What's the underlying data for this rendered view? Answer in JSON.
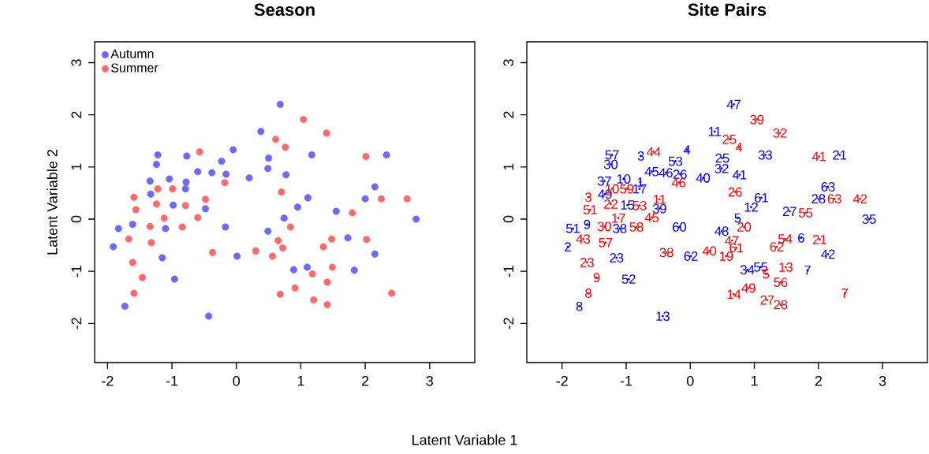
{
  "chart_data": [
    {
      "type": "scatter",
      "title": "Season",
      "xlabel": "Latent Variable 1",
      "ylabel": "Latent Variable 2",
      "xlim": [
        -2.2,
        3.7
      ],
      "ylim": [
        -2.75,
        3.4
      ],
      "xticks": [
        -2,
        -1,
        0,
        1,
        2,
        3
      ],
      "yticks": [
        -2,
        -1,
        0,
        1,
        2,
        3
      ],
      "marker": "circle",
      "legend": "top left",
      "series": [
        {
          "name": "Autumn",
          "color": "#6a6aff",
          "x": [
            -1.22,
            -1.24,
            -0.77,
            -0.05,
            -0.23,
            -0.6,
            -0.38,
            -0.16,
            -1.34,
            -1.04,
            -0.78,
            -0.79,
            -1.33,
            -0.98,
            -0.48,
            -1.83,
            -1.61,
            -1.1,
            -0.17,
            -1.91,
            -1.15,
            0.01,
            -0.96,
            -1.73,
            -0.43,
            0.68,
            0.38,
            1.17,
            0.5,
            0.49,
            0.77,
            0.2,
            1.11,
            0.95,
            0.74,
            0.49,
            1.55,
            0.89,
            1.1,
            1.73,
            2.33,
            2.15,
            2.0,
            2.79,
            2.15,
            1.83
          ],
          "values": [
            1.23,
            1.05,
            1.21,
            1.33,
            1.11,
            0.91,
            0.89,
            0.86,
            0.73,
            0.77,
            0.71,
            0.58,
            0.48,
            0.27,
            0.2,
            -0.18,
            -0.1,
            -0.18,
            -0.15,
            -0.53,
            -0.74,
            -0.71,
            -1.15,
            -1.67,
            -1.86,
            2.2,
            1.68,
            1.23,
            1.17,
            0.97,
            0.85,
            0.79,
            0.41,
            0.23,
            0.02,
            -0.23,
            0.15,
            -0.97,
            -0.92,
            -0.36,
            1.23,
            0.62,
            0.39,
            0.0,
            -0.67,
            -0.98
          ]
        },
        {
          "name": "Summer",
          "color": "#ff6a6a",
          "x": [
            -0.57,
            -0.18,
            -1.22,
            -0.99,
            -1.59,
            -0.48,
            -1.56,
            -1.24,
            -0.79,
            -0.6,
            -1.34,
            -0.84,
            -1.12,
            -1.32,
            -1.67,
            -0.37,
            -1.61,
            -1.46,
            -1.59,
            1.04,
            1.4,
            0.61,
            0.76,
            0.7,
            0.84,
            0.65,
            0.72,
            0.3,
            0.56,
            1.48,
            1.35,
            1.49,
            1.18,
            1.41,
            0.68,
            0.91,
            1.2,
            1.41,
            2.01,
            2.25,
            2.65,
            1.8,
            2.02,
            2.41
          ],
          "values": [
            1.29,
            0.7,
            0.58,
            0.58,
            0.42,
            0.38,
            0.18,
            0.29,
            0.26,
            0.03,
            -0.14,
            -0.15,
            0.02,
            -0.45,
            -0.38,
            -0.64,
            -0.83,
            -1.12,
            -1.42,
            1.91,
            1.65,
            1.53,
            1.38,
            0.52,
            -0.15,
            -0.41,
            -0.55,
            -0.61,
            -0.71,
            -0.38,
            -0.53,
            -0.92,
            -1.05,
            -1.21,
            -1.44,
            -1.32,
            -1.55,
            -1.64,
            1.2,
            0.39,
            0.39,
            0.12,
            -0.39,
            -1.42
          ]
        }
      ]
    },
    {
      "type": "scatter",
      "title": "Site Pairs",
      "xlim": [
        -2.55,
        3.7
      ],
      "ylim": [
        -2.75,
        3.4
      ],
      "xticks": [
        -2,
        -1,
        0,
        1,
        2,
        3
      ],
      "yticks": [
        -2,
        -1,
        0,
        1,
        2,
        3
      ],
      "marker": "circle",
      "series": [
        {
          "color": "#0000ff",
          "x": [
            -1.22,
            -1.24,
            -0.77,
            -0.05,
            -0.23,
            -0.6,
            -0.38,
            -0.16,
            -1.34,
            -1.04,
            -0.78,
            -0.79,
            -1.33,
            -0.98,
            -0.48,
            -1.83,
            -1.61,
            -1.1,
            -0.17,
            -1.91,
            -1.15,
            0.01,
            -0.96,
            -1.73,
            -0.43,
            0.68,
            0.38,
            1.17,
            0.5,
            0.49,
            0.77,
            0.2,
            1.11,
            0.95,
            0.74,
            0.49,
            1.55,
            0.89,
            1.1,
            1.73,
            2.33,
            2.15,
            2.0,
            2.79,
            2.15,
            1.83
          ],
          "values": [
            1.23,
            1.05,
            1.21,
            1.33,
            1.11,
            0.91,
            0.89,
            0.86,
            0.73,
            0.77,
            0.71,
            0.58,
            0.48,
            0.27,
            0.2,
            -0.18,
            -0.1,
            -0.18,
            -0.15,
            -0.53,
            -0.74,
            -0.71,
            -1.15,
            -1.67,
            -1.86,
            2.2,
            1.68,
            1.23,
            1.17,
            0.97,
            0.85,
            0.79,
            0.41,
            0.23,
            0.02,
            -0.23,
            0.15,
            -0.97,
            -0.92,
            -0.36,
            1.23,
            0.62,
            0.39,
            0.0,
            -0.67,
            -0.98
          ]
        },
        {
          "color": "#ff0000",
          "x": [
            -0.57,
            -0.18,
            -1.22,
            -0.99,
            -1.59,
            -0.48,
            -1.56,
            -1.24,
            -0.79,
            -0.6,
            -1.34,
            -0.84,
            -1.12,
            -1.32,
            -1.67,
            -0.37,
            -1.61,
            -1.46,
            -1.59,
            1.04,
            1.4,
            0.61,
            0.76,
            0.7,
            0.84,
            0.65,
            0.72,
            0.3,
            0.56,
            1.48,
            1.35,
            1.49,
            1.18,
            1.41,
            0.68,
            0.91,
            1.2,
            1.41,
            2.01,
            2.25,
            2.65,
            1.8,
            2.02,
            2.41
          ],
          "values": [
            1.29,
            0.7,
            0.58,
            0.58,
            0.42,
            0.38,
            0.18,
            0.29,
            0.26,
            0.03,
            -0.14,
            -0.15,
            0.02,
            -0.45,
            -0.38,
            -0.64,
            -0.83,
            -1.12,
            -1.42,
            1.91,
            1.65,
            1.53,
            1.38,
            0.52,
            -0.15,
            -0.41,
            -0.55,
            -0.61,
            -0.71,
            -0.38,
            -0.53,
            -0.92,
            -1.05,
            -1.21,
            -1.44,
            -1.32,
            -1.55,
            -1.64,
            1.2,
            0.39,
            0.39,
            0.12,
            -0.39,
            -1.42
          ]
        }
      ],
      "annotations": [
        {
          "text": "57",
          "x": -1.22,
          "y": 1.23
        },
        {
          "text": "30",
          "x": -1.24,
          "y": 1.05
        },
        {
          "text": "3",
          "x": -0.77,
          "y": 1.21
        },
        {
          "text": "4",
          "x": -0.05,
          "y": 1.33
        },
        {
          "text": "53",
          "x": -0.23,
          "y": 1.11
        },
        {
          "text": "45",
          "x": -0.6,
          "y": 0.91
        },
        {
          "text": "46",
          "x": -0.38,
          "y": 0.89
        },
        {
          "text": "26",
          "x": -0.16,
          "y": 0.86
        },
        {
          "text": "37",
          "x": -1.34,
          "y": 0.73
        },
        {
          "text": "10",
          "x": -1.04,
          "y": 0.77
        },
        {
          "text": "1",
          "x": -0.78,
          "y": 0.71
        },
        {
          "text": "17",
          "x": -0.79,
          "y": 0.58
        },
        {
          "text": "49",
          "x": -1.33,
          "y": 0.48
        },
        {
          "text": "15",
          "x": -0.98,
          "y": 0.27
        },
        {
          "text": "39",
          "x": -0.48,
          "y": 0.2
        },
        {
          "text": "51",
          "x": -1.83,
          "y": -0.18
        },
        {
          "text": "9",
          "x": -1.61,
          "y": -0.1
        },
        {
          "text": "38",
          "x": -1.1,
          "y": -0.18
        },
        {
          "text": "60",
          "x": -0.17,
          "y": -0.15
        },
        {
          "text": "2",
          "x": -1.91,
          "y": -0.53
        },
        {
          "text": "23",
          "x": -1.15,
          "y": -0.74
        },
        {
          "text": "62",
          "x": 0.01,
          "y": -0.71
        },
        {
          "text": "52",
          "x": -0.96,
          "y": -1.15
        },
        {
          "text": "8",
          "x": -1.73,
          "y": -1.67
        },
        {
          "text": "13",
          "x": -0.43,
          "y": -1.86
        },
        {
          "text": "47",
          "x": 0.68,
          "y": 2.2
        },
        {
          "text": "11",
          "x": 0.38,
          "y": 1.68
        },
        {
          "text": "33",
          "x": 1.17,
          "y": 1.23
        },
        {
          "text": "25",
          "x": 0.5,
          "y": 1.17
        },
        {
          "text": "32",
          "x": 0.49,
          "y": 0.97
        },
        {
          "text": "41",
          "x": 0.77,
          "y": 0.85
        },
        {
          "text": "40",
          "x": 0.2,
          "y": 0.79
        },
        {
          "text": "61",
          "x": 1.11,
          "y": 0.41
        },
        {
          "text": "12",
          "x": 0.95,
          "y": 0.23
        },
        {
          "text": "5",
          "x": 0.74,
          "y": 0.02
        },
        {
          "text": "48",
          "x": 0.49,
          "y": -0.23
        },
        {
          "text": "27",
          "x": 1.55,
          "y": 0.15
        },
        {
          "text": "34",
          "x": 0.89,
          "y": -0.97
        },
        {
          "text": "55",
          "x": 1.1,
          "y": -0.92
        },
        {
          "text": "6",
          "x": 1.73,
          "y": -0.36
        },
        {
          "text": "21",
          "x": 2.33,
          "y": 1.23
        },
        {
          "text": "63",
          "x": 2.15,
          "y": 0.62
        },
        {
          "text": "28",
          "x": 2.0,
          "y": 0.39
        },
        {
          "text": "35",
          "x": 2.79,
          "y": 0.0
        },
        {
          "text": "42",
          "x": 2.15,
          "y": -0.67
        },
        {
          "text": "7",
          "x": 1.83,
          "y": -0.98
        },
        {
          "text": "44",
          "x": -0.57,
          "y": 1.29
        },
        {
          "text": "46",
          "x": -0.18,
          "y": 0.7
        },
        {
          "text": "10",
          "x": -1.22,
          "y": 0.58
        },
        {
          "text": "59",
          "x": -0.99,
          "y": 0.58
        },
        {
          "text": "3",
          "x": -1.59,
          "y": 0.42
        },
        {
          "text": "11",
          "x": -0.48,
          "y": 0.38
        },
        {
          "text": "51",
          "x": -1.56,
          "y": 0.18
        },
        {
          "text": "22",
          "x": -1.24,
          "y": 0.29
        },
        {
          "text": "53",
          "x": -0.79,
          "y": 0.26
        },
        {
          "text": "45",
          "x": -0.6,
          "y": 0.03
        },
        {
          "text": "30",
          "x": -1.34,
          "y": -0.14
        },
        {
          "text": "58",
          "x": -0.84,
          "y": -0.15
        },
        {
          "text": "17",
          "x": -1.12,
          "y": 0.02
        },
        {
          "text": "57",
          "x": -1.32,
          "y": -0.45
        },
        {
          "text": "43",
          "x": -1.67,
          "y": -0.38
        },
        {
          "text": "38",
          "x": -0.37,
          "y": -0.64
        },
        {
          "text": "23",
          "x": -1.61,
          "y": -0.83
        },
        {
          "text": "9",
          "x": -1.46,
          "y": -1.12
        },
        {
          "text": "8",
          "x": -1.59,
          "y": -1.42
        },
        {
          "text": "39",
          "x": 1.04,
          "y": 1.91
        },
        {
          "text": "32",
          "x": 1.4,
          "y": 1.65
        },
        {
          "text": "25",
          "x": 0.61,
          "y": 1.53
        },
        {
          "text": "4",
          "x": 0.76,
          "y": 1.38
        },
        {
          "text": "26",
          "x": 0.7,
          "y": 0.52
        },
        {
          "text": "20",
          "x": 0.84,
          "y": -0.15
        },
        {
          "text": "47",
          "x": 0.65,
          "y": -0.41
        },
        {
          "text": "61",
          "x": 0.72,
          "y": -0.55
        },
        {
          "text": "40",
          "x": 0.3,
          "y": -0.61
        },
        {
          "text": "19",
          "x": 0.56,
          "y": -0.71
        },
        {
          "text": "54",
          "x": 1.48,
          "y": -0.38
        },
        {
          "text": "62",
          "x": 1.35,
          "y": -0.53
        },
        {
          "text": "13",
          "x": 1.49,
          "y": -0.92
        },
        {
          "text": "5",
          "x": 1.18,
          "y": -1.05
        },
        {
          "text": "56",
          "x": 1.41,
          "y": -1.21
        },
        {
          "text": "14",
          "x": 0.68,
          "y": -1.44
        },
        {
          "text": "49",
          "x": 0.91,
          "y": -1.32
        },
        {
          "text": "27",
          "x": 1.2,
          "y": -1.55
        },
        {
          "text": "28",
          "x": 1.41,
          "y": -1.64
        },
        {
          "text": "41",
          "x": 2.01,
          "y": 1.2
        },
        {
          "text": "63",
          "x": 2.25,
          "y": 0.39
        },
        {
          "text": "42",
          "x": 2.65,
          "y": 0.39
        },
        {
          "text": "55",
          "x": 1.8,
          "y": 0.12
        },
        {
          "text": "21",
          "x": 2.02,
          "y": -0.39
        },
        {
          "text": "7",
          "x": 2.41,
          "y": -1.42
        }
      ]
    }
  ]
}
